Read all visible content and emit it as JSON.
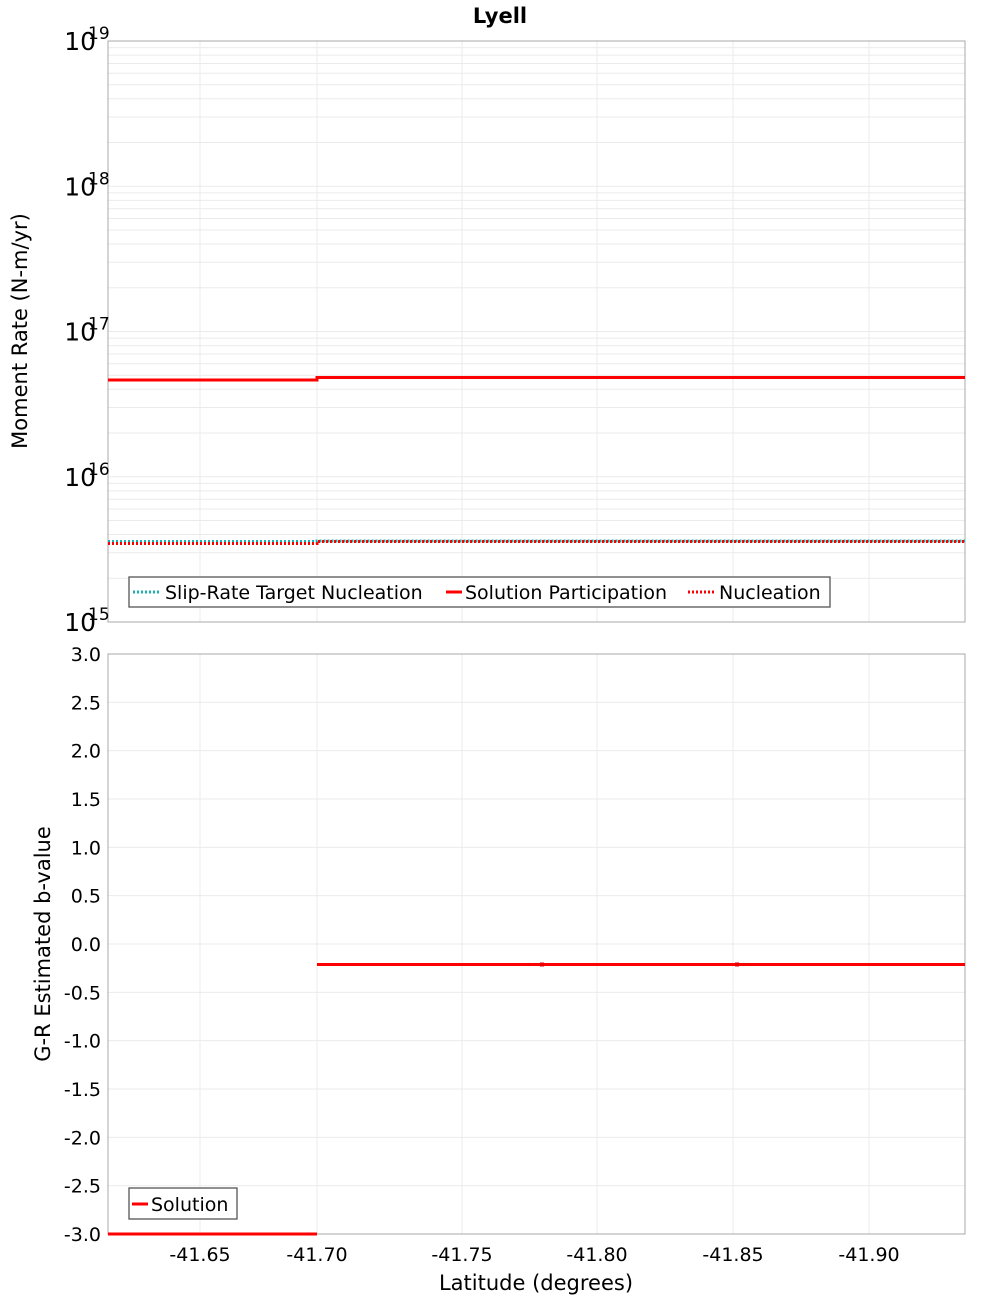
{
  "title": "Lyell",
  "chart_data": [
    {
      "type": "line",
      "title": "Lyell",
      "xlabel": "Latitude (degrees)",
      "ylabel": "Moment Rate (N-m/yr)",
      "yscale": "log",
      "ylim": [
        1000000000000000.0,
        1e+19
      ],
      "xlim": [
        -41.616,
        -41.935
      ],
      "x_reversed": true,
      "grid": true,
      "yticks": [
        {
          "base": "10",
          "exp": "19"
        },
        {
          "base": "10",
          "exp": "18"
        },
        {
          "base": "10",
          "exp": "17"
        },
        {
          "base": "10",
          "exp": "16"
        },
        {
          "base": "10",
          "exp": "15"
        }
      ],
      "legend_position": "lower-left",
      "series": [
        {
          "name": "Slip-Rate Target Nucleation",
          "color": "#1ab2b2",
          "style": "dotted",
          "x": [
            -41.616,
            -41.698,
            -41.698,
            -41.935
          ],
          "values": [
            3600000000000000.0,
            3600000000000000.0,
            3600000000000000.0,
            3600000000000000.0
          ]
        },
        {
          "name": "Solution Participation",
          "color": "#ff0000",
          "style": "solid",
          "x": [
            -41.616,
            -41.698,
            -41.698,
            -41.935
          ],
          "values": [
            4.6e+16,
            4.6e+16,
            4.9e+16,
            4.9e+16
          ]
        },
        {
          "name": "Nucleation",
          "color": "#ff0000",
          "style": "dotted",
          "x": [
            -41.616,
            -41.698,
            -41.698,
            -41.935
          ],
          "values": [
            3500000000000000.0,
            3500000000000000.0,
            3600000000000000.0,
            3600000000000000.0
          ]
        }
      ]
    },
    {
      "type": "line",
      "title": "",
      "xlabel": "Latitude (degrees)",
      "ylabel": "G-R Estimated b-value",
      "ylim": [
        -3.0,
        3.0
      ],
      "xlim": [
        -41.616,
        -41.935
      ],
      "x_reversed": true,
      "grid": true,
      "xticks": [
        "-41.65",
        "-41.70",
        "-41.75",
        "-41.80",
        "-41.85",
        "-41.90"
      ],
      "yticks": [
        "3.0",
        "2.5",
        "2.0",
        "1.5",
        "1.0",
        "0.5",
        "0.0",
        "-0.5",
        "-1.0",
        "-1.5",
        "-2.0",
        "-2.5",
        "-3.0"
      ],
      "legend_position": "lower-left",
      "series": [
        {
          "name": "Solution",
          "color": "#ff0000",
          "style": "solid",
          "x": [
            -41.616,
            -41.698,
            -41.698,
            -41.78,
            -41.85,
            -41.935
          ],
          "values": [
            -3.0,
            -3.0,
            -0.2,
            -0.2,
            -0.2,
            -0.2
          ]
        }
      ]
    }
  ],
  "legend_top": [
    "Slip-Rate Target Nucleation",
    "Solution Participation",
    "Nucleation"
  ],
  "legend_bottom": [
    "Solution"
  ],
  "top_ylabel": "Moment Rate (N-m/yr)",
  "bottom_ylabel": "G-R Estimated b-value",
  "xlabel": "Latitude (degrees)",
  "xticks": [
    "-41.65",
    "-41.70",
    "-41.75",
    "-41.80",
    "-41.85",
    "-41.90"
  ],
  "bottom_yticks": [
    "3.0",
    "2.5",
    "2.0",
    "1.5",
    "1.0",
    "0.5",
    "0.0",
    "-0.5",
    "-1.0",
    "-1.5",
    "-2.0",
    "-2.5",
    "-3.0"
  ],
  "top_yticks": [
    {
      "base": "10",
      "exp": "19"
    },
    {
      "base": "10",
      "exp": "18"
    },
    {
      "base": "10",
      "exp": "17"
    },
    {
      "base": "10",
      "exp": "16"
    },
    {
      "base": "10",
      "exp": "15"
    }
  ]
}
